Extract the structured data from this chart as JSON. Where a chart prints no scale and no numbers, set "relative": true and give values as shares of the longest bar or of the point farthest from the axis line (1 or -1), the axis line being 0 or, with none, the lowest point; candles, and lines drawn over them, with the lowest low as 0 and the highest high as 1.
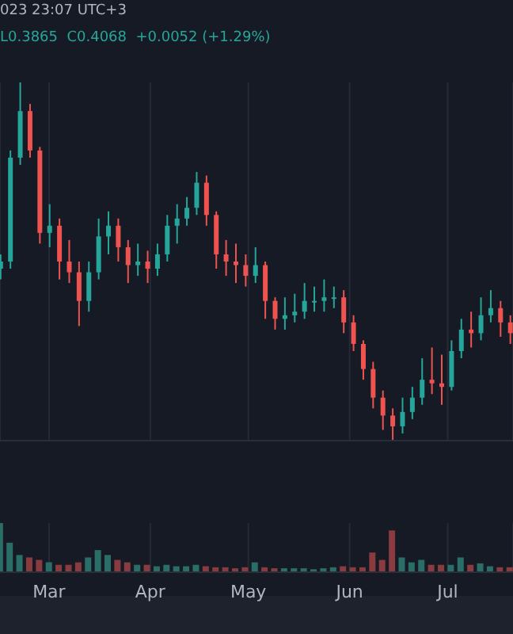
{
  "chart_data": [
    {
      "type": "candlestick",
      "relative": true,
      "annotations": [
        "023 23:07 UTC+3",
        "L0.3865  C0.4068  +0.0052 (+1.29%)"
      ],
      "grid": "x",
      "tick_labels": false,
      "xlim": [
        "--02-14",
        "--07-21"
      ],
      "xticks": [
        {
          "value": "--03-01",
          "label": null
        },
        {
          "value": "--04-01",
          "label": null
        },
        {
          "value": "--05-01",
          "label": null
        },
        {
          "value": "--06-01",
          "label": null
        },
        {
          "value": "--07-01",
          "label": null
        }
      ],
      "x": [
        "--02-14",
        "--02-17",
        "--02-20",
        "--02-23",
        "--02-26",
        "--03-01",
        "--03-04",
        "--03-07",
        "--03-10",
        "--03-13",
        "--03-16",
        "--03-19",
        "--03-22",
        "--03-25",
        "--03-28",
        "--03-31",
        "--04-03",
        "--04-06",
        "--04-09",
        "--04-12",
        "--04-15",
        "--04-18",
        "--04-21",
        "--04-24",
        "--04-27",
        "--04-30",
        "--05-03",
        "--05-06",
        "--05-09",
        "--05-12",
        "--05-15",
        "--05-18",
        "--05-21",
        "--05-24",
        "--05-27",
        "--05-30",
        "--06-02",
        "--06-05",
        "--06-08",
        "--06-11",
        "--06-14",
        "--06-17",
        "--06-20",
        "--06-23",
        "--06-26",
        "--06-29",
        "--07-02",
        "--07-05",
        "--07-08",
        "--07-11",
        "--07-14",
        "--07-17",
        "--07-20"
      ],
      "ohlc": [
        [
          0.48,
          0.52,
          0.45,
          0.5
        ],
        [
          0.5,
          0.81,
          0.48,
          0.79
        ],
        [
          0.79,
          1.0,
          0.77,
          0.92
        ],
        [
          0.92,
          0.94,
          0.79,
          0.81
        ],
        [
          0.81,
          0.82,
          0.55,
          0.58
        ],
        [
          0.58,
          0.66,
          0.54,
          0.6
        ],
        [
          0.6,
          0.62,
          0.45,
          0.5
        ],
        [
          0.5,
          0.56,
          0.44,
          0.47
        ],
        [
          0.47,
          0.5,
          0.32,
          0.39
        ],
        [
          0.39,
          0.5,
          0.36,
          0.47
        ],
        [
          0.47,
          0.62,
          0.45,
          0.57
        ],
        [
          0.57,
          0.64,
          0.52,
          0.6
        ],
        [
          0.6,
          0.62,
          0.5,
          0.54
        ],
        [
          0.54,
          0.56,
          0.44,
          0.49
        ],
        [
          0.49,
          0.55,
          0.46,
          0.5
        ],
        [
          0.5,
          0.53,
          0.44,
          0.48
        ],
        [
          0.48,
          0.55,
          0.46,
          0.52
        ],
        [
          0.52,
          0.63,
          0.5,
          0.6
        ],
        [
          0.6,
          0.66,
          0.55,
          0.62
        ],
        [
          0.62,
          0.68,
          0.6,
          0.65
        ],
        [
          0.65,
          0.75,
          0.63,
          0.72
        ],
        [
          0.72,
          0.74,
          0.6,
          0.63
        ],
        [
          0.63,
          0.64,
          0.48,
          0.52
        ],
        [
          0.52,
          0.56,
          0.46,
          0.5
        ],
        [
          0.5,
          0.55,
          0.44,
          0.49
        ],
        [
          0.49,
          0.52,
          0.43,
          0.46
        ],
        [
          0.46,
          0.54,
          0.44,
          0.49
        ],
        [
          0.49,
          0.5,
          0.34,
          0.39
        ],
        [
          0.39,
          0.4,
          0.31,
          0.34
        ],
        [
          0.34,
          0.4,
          0.31,
          0.35
        ],
        [
          0.35,
          0.41,
          0.33,
          0.36
        ],
        [
          0.36,
          0.44,
          0.34,
          0.39
        ],
        [
          0.39,
          0.43,
          0.36,
          0.39
        ],
        [
          0.39,
          0.45,
          0.36,
          0.4
        ],
        [
          0.4,
          0.43,
          0.37,
          0.4
        ],
        [
          0.4,
          0.42,
          0.3,
          0.33
        ],
        [
          0.33,
          0.35,
          0.25,
          0.27
        ],
        [
          0.27,
          0.28,
          0.17,
          0.2
        ],
        [
          0.2,
          0.22,
          0.09,
          0.12
        ],
        [
          0.12,
          0.14,
          0.03,
          0.07
        ],
        [
          0.07,
          0.09,
          0.0,
          0.04
        ],
        [
          0.04,
          0.12,
          0.02,
          0.08
        ],
        [
          0.08,
          0.15,
          0.06,
          0.12
        ],
        [
          0.12,
          0.23,
          0.1,
          0.17
        ],
        [
          0.17,
          0.26,
          0.13,
          0.16
        ],
        [
          0.16,
          0.24,
          0.1,
          0.15
        ],
        [
          0.15,
          0.28,
          0.14,
          0.25
        ],
        [
          0.25,
          0.34,
          0.23,
          0.31
        ],
        [
          0.31,
          0.36,
          0.26,
          0.3
        ],
        [
          0.3,
          0.4,
          0.28,
          0.35
        ],
        [
          0.35,
          0.42,
          0.33,
          0.37
        ],
        [
          0.37,
          0.39,
          0.29,
          0.33
        ],
        [
          0.33,
          0.35,
          0.27,
          0.3
        ]
      ],
      "colors": [
        "#26a69a",
        "#26a69a",
        "#26a69a",
        "#ef5350",
        "#ef5350",
        "#26a69a",
        "#ef5350",
        "#ef5350",
        "#ef5350",
        "#26a69a",
        "#26a69a",
        "#26a69a",
        "#ef5350",
        "#ef5350",
        "#26a69a",
        "#ef5350",
        "#26a69a",
        "#26a69a",
        "#26a69a",
        "#26a69a",
        "#26a69a",
        "#ef5350",
        "#ef5350",
        "#ef5350",
        "#ef5350",
        "#ef5350",
        "#26a69a",
        "#ef5350",
        "#ef5350",
        "#26a69a",
        "#26a69a",
        "#26a69a",
        "#26a69a",
        "#26a69a",
        "#26a69a",
        "#ef5350",
        "#ef5350",
        "#ef5350",
        "#ef5350",
        "#ef5350",
        "#ef5350",
        "#26a69a",
        "#26a69a",
        "#26a69a",
        "#ef5350",
        "#ef5350",
        "#26a69a",
        "#26a69a",
        "#ef5350",
        "#26a69a",
        "#26a69a",
        "#ef5350",
        "#ef5350"
      ]
    },
    {
      "type": "bar",
      "relative": true,
      "grid": "x",
      "tick_labels": "x",
      "xlim": [
        "--02-14",
        "--07-21"
      ],
      "xticks": [
        {
          "value": "--03-01",
          "label": "Mar"
        },
        {
          "value": "--04-01",
          "label": "Apr"
        },
        {
          "value": "--05-01",
          "label": "May"
        },
        {
          "value": "--06-01",
          "label": "Jun"
        },
        {
          "value": "--07-01",
          "label": "Jul"
        }
      ],
      "x": [
        "--02-14",
        "--02-17",
        "--02-20",
        "--02-23",
        "--02-26",
        "--03-01",
        "--03-04",
        "--03-07",
        "--03-10",
        "--03-13",
        "--03-16",
        "--03-19",
        "--03-22",
        "--03-25",
        "--03-28",
        "--03-31",
        "--04-03",
        "--04-06",
        "--04-09",
        "--04-12",
        "--04-15",
        "--04-18",
        "--04-21",
        "--04-24",
        "--04-27",
        "--04-30",
        "--05-03",
        "--05-06",
        "--05-09",
        "--05-12",
        "--05-15",
        "--05-18",
        "--05-21",
        "--05-24",
        "--05-27",
        "--05-30",
        "--06-02",
        "--06-05",
        "--06-08",
        "--06-11",
        "--06-14",
        "--06-17",
        "--06-20",
        "--06-23",
        "--06-26",
        "--06-29",
        "--07-02",
        "--07-05",
        "--07-08",
        "--07-11",
        "--07-14",
        "--07-17",
        "--07-20"
      ],
      "values": [
        1.0,
        0.6,
        0.35,
        0.3,
        0.25,
        0.2,
        0.15,
        0.15,
        0.2,
        0.3,
        0.45,
        0.35,
        0.25,
        0.2,
        0.15,
        0.15,
        0.12,
        0.15,
        0.12,
        0.12,
        0.15,
        0.12,
        0.1,
        0.1,
        0.08,
        0.1,
        0.2,
        0.1,
        0.08,
        0.08,
        0.08,
        0.08,
        0.06,
        0.08,
        0.1,
        0.12,
        0.1,
        0.1,
        0.4,
        0.25,
        0.85,
        0.3,
        0.2,
        0.25,
        0.15,
        0.15,
        0.15,
        0.3,
        0.15,
        0.18,
        0.12,
        0.1,
        0.1
      ],
      "colors": [
        "#2b6e67",
        "#2b6e67",
        "#2b6e67",
        "#8a3b40",
        "#8a3b40",
        "#2b6e67",
        "#8a3b40",
        "#8a3b40",
        "#8a3b40",
        "#2b6e67",
        "#2b6e67",
        "#2b6e67",
        "#8a3b40",
        "#8a3b40",
        "#2b6e67",
        "#8a3b40",
        "#2b6e67",
        "#2b6e67",
        "#2b6e67",
        "#2b6e67",
        "#2b6e67",
        "#8a3b40",
        "#8a3b40",
        "#8a3b40",
        "#8a3b40",
        "#8a3b40",
        "#2b6e67",
        "#8a3b40",
        "#8a3b40",
        "#2b6e67",
        "#2b6e67",
        "#2b6e67",
        "#2b6e67",
        "#2b6e67",
        "#2b6e67",
        "#8a3b40",
        "#8a3b40",
        "#8a3b40",
        "#8a3b40",
        "#8a3b40",
        "#8a3b40",
        "#2b6e67",
        "#2b6e67",
        "#2b6e67",
        "#8a3b40",
        "#8a3b40",
        "#2b6e67",
        "#2b6e67",
        "#8a3b40",
        "#2b6e67",
        "#2b6e67",
        "#8a3b40",
        "#8a3b40"
      ]
    }
  ]
}
